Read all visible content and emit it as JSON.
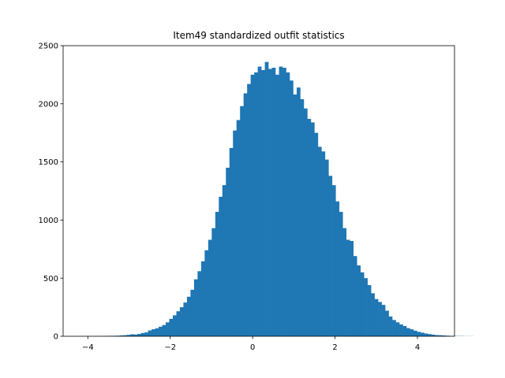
{
  "chart_data": {
    "type": "bar",
    "title": "Item49 standardized outfit statistics",
    "xlabel": "",
    "ylabel": "",
    "xlim": [
      -4.6,
      4.9
    ],
    "ylim": [
      0,
      2500
    ],
    "xticks": [
      -4,
      -2,
      0,
      2,
      4
    ],
    "xtick_labels": [
      "−4",
      "−2",
      "0",
      "2",
      "4"
    ],
    "yticks": [
      0,
      500,
      1000,
      1500,
      2000,
      2500
    ],
    "ytick_labels": [
      "0",
      "500",
      "1000",
      "1500",
      "2000",
      "2500"
    ],
    "grid": false,
    "bar_color": "#1f77b4",
    "bin_width": 0.0859,
    "bin_start": -4.171,
    "counts": [
      1,
      0,
      1,
      0,
      1,
      2,
      2,
      3,
      4,
      4,
      5,
      7,
      9,
      12,
      17,
      15,
      20,
      28,
      33,
      50,
      60,
      68,
      82,
      97,
      120,
      150,
      180,
      215,
      250,
      290,
      340,
      400,
      490,
      560,
      645,
      740,
      830,
      930,
      1070,
      1200,
      1300,
      1450,
      1620,
      1770,
      1860,
      1980,
      2090,
      2170,
      2250,
      2270,
      2320,
      2290,
      2360,
      2300,
      2310,
      2250,
      2320,
      2310,
      2270,
      2200,
      2080,
      2140,
      2040,
      1960,
      1870,
      1840,
      1750,
      1630,
      1590,
      1520,
      1380,
      1300,
      1160,
      1070,
      930,
      830,
      820,
      690,
      610,
      550,
      500,
      440,
      370,
      320,
      295,
      270,
      220,
      170,
      140,
      120,
      102,
      88,
      70,
      60,
      48,
      38,
      31,
      24,
      19,
      14,
      10,
      9,
      7,
      5,
      3,
      3,
      2,
      2,
      1,
      1,
      1
    ]
  }
}
